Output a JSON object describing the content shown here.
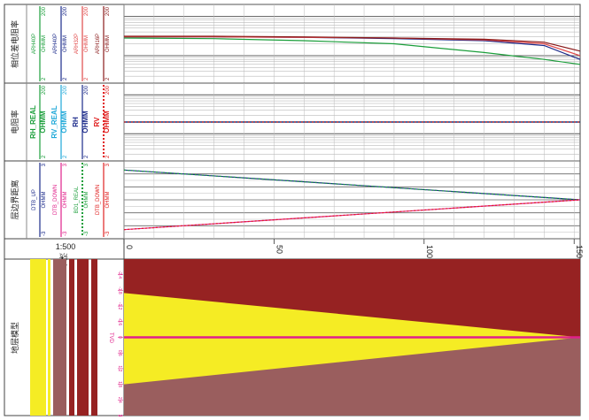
{
  "tracks": {
    "phase": {
      "title": "相位差电阻率",
      "curves": [
        {
          "name": "ARH40P",
          "unit": "OHMM",
          "max": "200",
          "min": "2",
          "color": "#1a9e3a"
        },
        {
          "name": "ARH40P",
          "unit": "OHMM",
          "max": "200",
          "min": "2",
          "color": "#1b2a8a"
        },
        {
          "name": "ARH32P",
          "unit": "OHMM",
          "max": "200",
          "min": "2",
          "color": "#e04848"
        },
        {
          "name": "ARH16P",
          "unit": "OHMM",
          "max": "200",
          "min": "2",
          "color": "#8a1a1a"
        }
      ]
    },
    "resist": {
      "title": "电阻率",
      "curves": [
        {
          "name": "RH_REAL",
          "unit": "OHMM",
          "max": "200",
          "min": "2",
          "color": "#1a9e3a"
        },
        {
          "name": "RV_REAL",
          "unit": "OHMM",
          "max": "200",
          "min": "2",
          "color": "#1fa8d8"
        },
        {
          "name": "RH",
          "unit": "OHMM",
          "max": "200",
          "min": "2",
          "color": "#1b2a8a"
        },
        {
          "name": "RV",
          "unit": "OHMM",
          "max": "200",
          "min": "2",
          "color": "#e02020"
        }
      ]
    },
    "dtb": {
      "title": "层边界距离",
      "curves": [
        {
          "name": "DTB_UP",
          "unit": "OHMM",
          "max": "3",
          "min": "-3",
          "color": "#1b2a8a"
        },
        {
          "name": "DTB_DOWN",
          "unit": "OHMM",
          "max": "3",
          "min": "-3",
          "color": "#e0208a"
        },
        {
          "name": "BD1_REAL",
          "unit": "OHMM",
          "max": "3",
          "min": "-3",
          "color": "#1a9e3a"
        },
        {
          "name": "DTB_DOWN",
          "unit": "OHMM",
          "max": "3",
          "min": "-3",
          "color": "#e02020"
        }
      ]
    },
    "model": {
      "title": "地层模型",
      "tvd_label": "TVD",
      "tvd_ticks": [
        "-2.4",
        "-1.8",
        "-1.2",
        "-0.6",
        "0",
        "0.6",
        "1.2",
        "1.8",
        "2.4",
        "3"
      ],
      "colors": {
        "upper": "#962222",
        "middle": "#f5ec24",
        "lower": "#9a5e5e",
        "well": "#e0208a"
      }
    }
  },
  "depth": {
    "scale": "1:500",
    "label": "深度",
    "ticks": [
      "0",
      "50",
      "100",
      "150"
    ]
  },
  "chart_data": [
    {
      "type": "line",
      "title": "相位差电阻率",
      "x": [
        0,
        30,
        60,
        90,
        120,
        140,
        152
      ],
      "series": [
        {
          "name": "ARH40P",
          "values": [
            28,
            27,
            24,
            20,
            12,
            8,
            6
          ]
        },
        {
          "name": "ARH40P",
          "values": [
            30,
            30,
            29,
            27,
            24,
            18,
            8
          ]
        },
        {
          "name": "ARH32P",
          "values": [
            30,
            30,
            29,
            28,
            25,
            20,
            10
          ]
        },
        {
          "name": "ARH16P",
          "values": [
            31,
            31,
            30,
            28,
            26,
            22,
            13
          ]
        }
      ],
      "ylim": [
        2,
        200
      ],
      "log_scale": true
    },
    {
      "type": "line",
      "title": "电阻率",
      "x": [
        0,
        152
      ],
      "series": [
        {
          "name": "RH_REAL",
          "values": [
            20,
            20
          ]
        },
        {
          "name": "RV_REAL",
          "values": [
            20,
            20
          ]
        },
        {
          "name": "RH",
          "values": [
            20,
            20
          ]
        },
        {
          "name": "RV",
          "values": [
            20,
            20
          ]
        }
      ],
      "ylim": [
        2,
        200
      ],
      "log_scale": true
    },
    {
      "type": "line",
      "title": "层边界距离",
      "x": [
        0,
        152
      ],
      "series": [
        {
          "name": "DTB_UP",
          "values": [
            2.3,
            0
          ]
        },
        {
          "name": "DTB_DOWN",
          "values": [
            -2.3,
            0
          ]
        },
        {
          "name": "BD1_REAL",
          "values": [
            2.3,
            0
          ]
        },
        {
          "name": "DTB_DOWN",
          "values": [
            -2.3,
            0
          ]
        }
      ],
      "ylim": [
        -3,
        3
      ]
    },
    {
      "type": "area",
      "title": "地层模型",
      "ylabel": "TVD",
      "x": [
        0,
        152
      ],
      "series": [
        {
          "values": [
            -1.7,
            0
          ]
        },
        {
          "values": [
            1.8,
            0
          ]
        }
      ],
      "ylim": [
        -3,
        3
      ]
    }
  ]
}
